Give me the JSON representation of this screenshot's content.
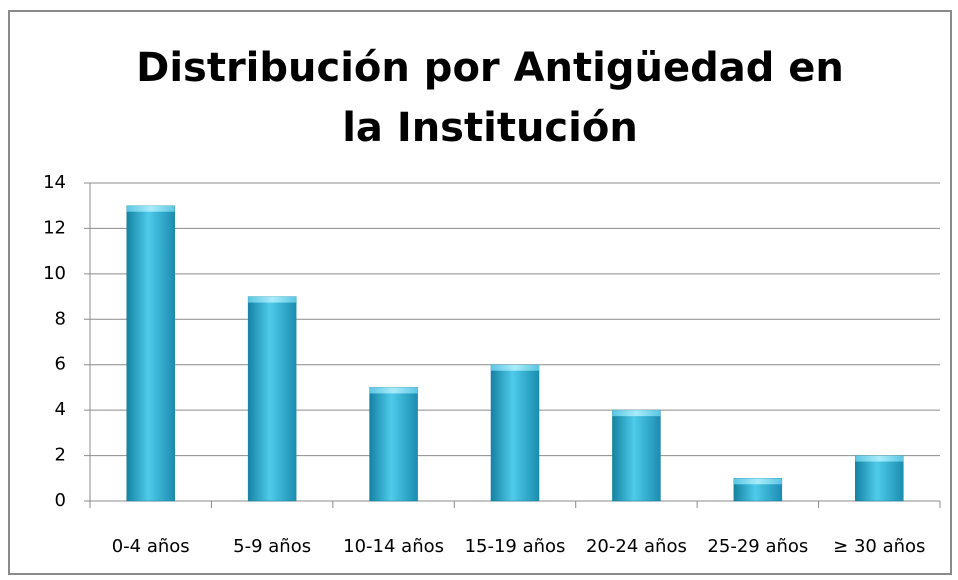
{
  "chart_data": {
    "type": "bar",
    "title": "Distribución por Antigüedad en la Institución",
    "categories": [
      "0-4 años",
      "5-9 años",
      "10-14 años",
      "15-19 años",
      "20-24 años",
      "25-29 años",
      "≥ 30 años"
    ],
    "values": [
      13,
      9,
      5,
      6,
      4,
      1,
      2
    ],
    "color": "#2bb3d9",
    "ylim": [
      0,
      14
    ],
    "yticks": [
      0,
      2,
      4,
      6,
      8,
      10,
      12,
      14
    ],
    "grid": true
  }
}
